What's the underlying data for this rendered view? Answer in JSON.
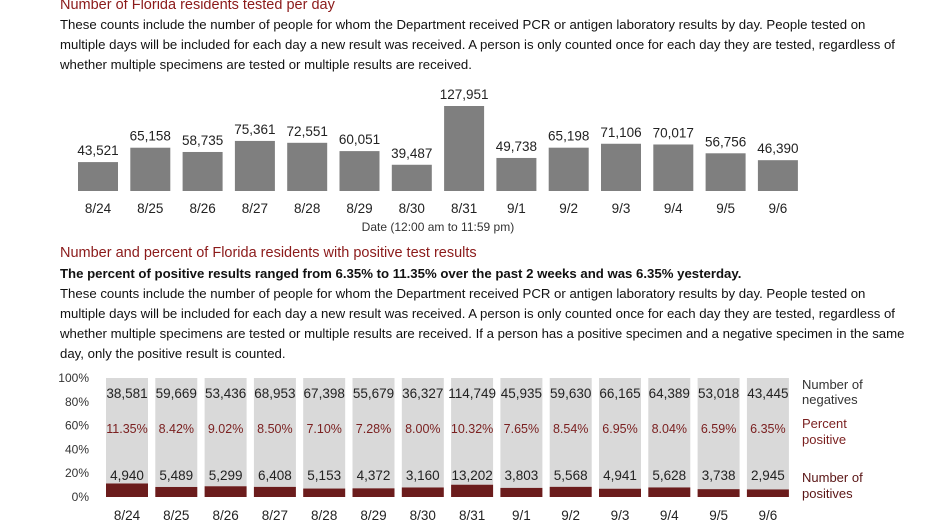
{
  "section1": {
    "title": "Number of Florida residents tested per day",
    "description": "These counts include the number of people for whom the Department received PCR or antigen laboratory results by day. People tested on multiple days will be included for each day a new result was received. A person is only counted once for each day they are tested, regardless of whether multiple specimens are tested or multiple results are received."
  },
  "section2": {
    "title": "Number and percent of Florida residents with positive test results",
    "summary": "The percent of positive results ranged from 6.35% to 11.35% over the past 2 weeks and was 6.35% yesterday.",
    "description": "These counts include the number of people for whom the Department received PCR or antigen laboratory results by day. People tested on multiple days will be included for each day a new result was received. A person is only counted once for each day they are tested, regardless of whether multiple specimens are tested or multiple results are received. If a person has a positive specimen and a negative specimen in the same day, only the positive result is counted."
  },
  "colors": {
    "gray_bar": "#7f7f7f",
    "light_bar": "#d9d9d9",
    "positive_bar": "#6b1c1c",
    "title_red": "#8b1a1a"
  },
  "chart_data": [
    {
      "type": "bar",
      "xlabel": "Date (12:00 am to 11:59 pm)",
      "categories": [
        "8/24",
        "8/25",
        "8/26",
        "8/27",
        "8/28",
        "8/29",
        "8/30",
        "8/31",
        "9/1",
        "9/2",
        "9/3",
        "9/4",
        "9/5",
        "9/6"
      ],
      "values": [
        43521,
        65158,
        58735,
        75361,
        72551,
        60051,
        39487,
        127951,
        49738,
        65198,
        71106,
        70017,
        56756,
        46390
      ],
      "value_labels": [
        "43,521",
        "65,158",
        "58,735",
        "75,361",
        "72,551",
        "60,051",
        "39,487",
        "127,951",
        "49,738",
        "65,198",
        "71,106",
        "70,017",
        "56,756",
        "46,390"
      ],
      "ylim": [
        0,
        127951
      ]
    },
    {
      "type": "bar",
      "stacked": true,
      "percent_axis": true,
      "categories": [
        "8/24",
        "8/25",
        "8/26",
        "8/27",
        "8/28",
        "8/29",
        "8/30",
        "8/31",
        "9/1",
        "9/2",
        "9/3",
        "9/4",
        "9/5",
        "9/6"
      ],
      "yticks": [
        "100%",
        "80%",
        "60%",
        "40%",
        "20%",
        "0%"
      ],
      "series": [
        {
          "name": "Number of positives",
          "values": [
            4940,
            5489,
            5299,
            6408,
            5153,
            4372,
            3160,
            13202,
            3803,
            5568,
            4941,
            5628,
            3738,
            2945
          ],
          "labels": [
            "4,940",
            "5,489",
            "5,299",
            "6,408",
            "5,153",
            "4,372",
            "3,160",
            "13,202",
            "3,803",
            "5,568",
            "4,941",
            "5,628",
            "3,738",
            "2,945"
          ]
        },
        {
          "name": "Number of negatives",
          "values": [
            38581,
            59669,
            53436,
            68953,
            67398,
            55679,
            36327,
            114749,
            45935,
            59630,
            66165,
            64389,
            53018,
            43445
          ],
          "labels": [
            "38,581",
            "59,669",
            "53,436",
            "68,953",
            "67,398",
            "55,679",
            "36,327",
            "114,749",
            "45,935",
            "59,630",
            "66,165",
            "64,389",
            "53,018",
            "43,445"
          ]
        }
      ],
      "percent_positive": {
        "name": "Percent positive",
        "values": [
          11.35,
          8.42,
          9.02,
          8.5,
          7.1,
          7.28,
          8.0,
          10.32,
          7.65,
          8.54,
          6.95,
          8.04,
          6.59,
          6.35
        ],
        "labels": [
          "11.35%",
          "8.42%",
          "9.02%",
          "8.50%",
          "7.10%",
          "7.28%",
          "8.00%",
          "10.32%",
          "7.65%",
          "8.54%",
          "6.95%",
          "8.04%",
          "6.59%",
          "6.35%"
        ]
      },
      "legend": {
        "negatives": [
          "Number of",
          "negatives"
        ],
        "percent": [
          "Percent",
          "positive"
        ],
        "positives": [
          "Number of",
          "positives"
        ]
      },
      "legend_position": "right"
    }
  ]
}
